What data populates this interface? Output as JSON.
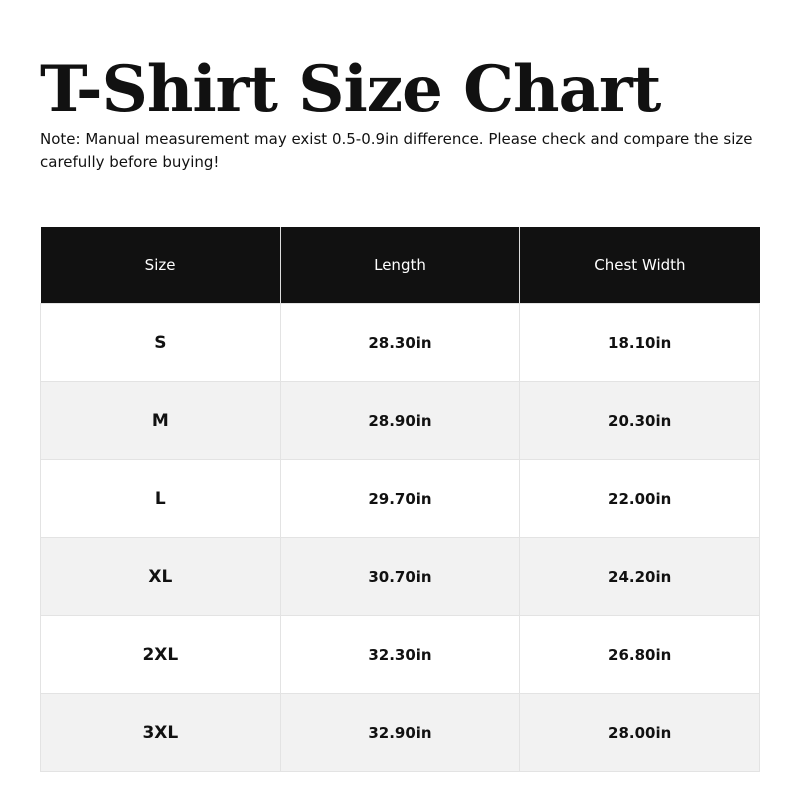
{
  "title": "T-Shirt Size Chart",
  "note": "Note: Manual measurement may exist 0.5-0.9in difference. Please check and compare the size carefully before buying!",
  "table": {
    "headers": [
      "Size",
      "Length",
      "Chest Width"
    ],
    "rows": [
      [
        "S",
        "28.30in",
        "18.10in"
      ],
      [
        "M",
        "28.90in",
        "20.30in"
      ],
      [
        "L",
        "29.70in",
        "22.00in"
      ],
      [
        "XL",
        "30.70in",
        "24.20in"
      ],
      [
        "2XL",
        "32.30in",
        "26.80in"
      ],
      [
        "3XL",
        "32.90in",
        "28.00in"
      ]
    ]
  },
  "colors": {
    "header_bg": "#111111",
    "alt_row_bg": "#f2f2f2"
  }
}
